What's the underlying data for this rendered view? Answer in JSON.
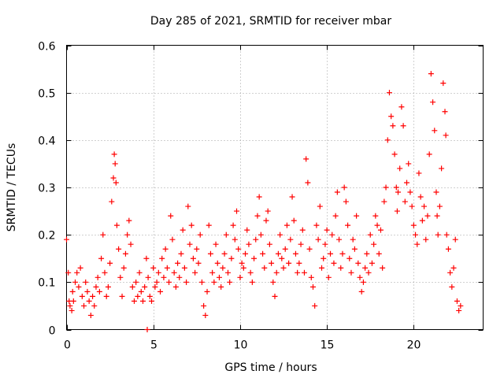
{
  "chart_data": {
    "type": "scatter",
    "title": "Day 285 of 2021, SRMTID for receiver mbar",
    "xlabel": "GPS time / hours",
    "ylabel": "SRMTID / TECUs",
    "xlim": [
      0,
      24
    ],
    "ylim": [
      0,
      0.6
    ],
    "xticks": [
      0,
      5,
      10,
      15,
      20
    ],
    "yticks": [
      0,
      0.1,
      0.2,
      0.3,
      0.4,
      0.5,
      0.6
    ],
    "xtick_labels": [
      "0",
      "5",
      "10",
      "15",
      "20"
    ],
    "ytick_labels": [
      "0",
      "0.1",
      "0.2",
      "0.3",
      "0.4",
      "0.5",
      "0.6"
    ],
    "grid": true,
    "marker": "+",
    "color": "#ff0000",
    "series": [
      {
        "name": "SRMTID",
        "x": [
          0.0,
          0.1,
          0.15,
          0.2,
          0.3,
          0.35,
          0.4,
          0.5,
          0.6,
          0.7,
          0.8,
          0.9,
          1.0,
          1.1,
          1.2,
          1.3,
          1.4,
          1.5,
          1.6,
          1.7,
          1.8,
          1.9,
          2.0,
          2.1,
          2.2,
          2.3,
          2.4,
          2.5,
          2.6,
          2.7,
          2.75,
          2.8,
          2.85,
          2.9,
          3.0,
          3.1,
          3.2,
          3.3,
          3.4,
          3.5,
          3.6,
          3.7,
          3.8,
          3.9,
          4.0,
          4.1,
          4.2,
          4.3,
          4.4,
          4.5,
          4.6,
          4.7,
          4.8,
          4.9,
          5.0,
          5.1,
          5.2,
          5.3,
          5.4,
          5.5,
          5.6,
          5.7,
          5.8,
          5.9,
          6.0,
          6.1,
          6.2,
          6.3,
          6.4,
          6.5,
          6.6,
          6.7,
          6.8,
          6.9,
          7.0,
          7.1,
          7.2,
          7.3,
          7.4,
          7.5,
          7.6,
          7.7,
          7.8,
          7.9,
          8.0,
          8.1,
          8.2,
          8.3,
          8.4,
          8.5,
          8.6,
          8.7,
          8.8,
          8.9,
          9.0,
          9.1,
          9.2,
          9.3,
          9.4,
          9.5,
          9.6,
          9.7,
          9.8,
          9.9,
          10.0,
          10.1,
          10.2,
          10.3,
          10.4,
          10.5,
          10.6,
          10.7,
          10.8,
          10.9,
          11.0,
          11.1,
          11.2,
          11.3,
          11.4,
          11.5,
          11.6,
          11.7,
          11.8,
          11.9,
          12.0,
          12.1,
          12.2,
          12.3,
          12.4,
          12.5,
          12.6,
          12.7,
          12.8,
          12.9,
          13.0,
          13.1,
          13.2,
          13.3,
          13.4,
          13.5,
          13.6,
          13.7,
          13.8,
          13.9,
          14.0,
          14.1,
          14.2,
          14.3,
          14.4,
          14.5,
          14.6,
          14.7,
          14.8,
          14.9,
          15.0,
          15.1,
          15.2,
          15.3,
          15.4,
          15.5,
          15.6,
          15.7,
          15.8,
          15.9,
          16.0,
          16.1,
          16.2,
          16.3,
          16.4,
          16.5,
          16.6,
          16.7,
          16.8,
          16.9,
          17.0,
          17.1,
          17.2,
          17.3,
          17.4,
          17.5,
          17.6,
          17.7,
          17.8,
          17.9,
          18.0,
          18.1,
          18.2,
          18.3,
          18.4,
          18.5,
          18.6,
          18.7,
          18.8,
          18.9,
          19.0,
          19.05,
          19.1,
          19.2,
          19.3,
          19.4,
          19.5,
          19.6,
          19.7,
          19.8,
          19.9,
          20.0,
          20.1,
          20.2,
          20.3,
          20.4,
          20.5,
          20.6,
          20.7,
          20.8,
          20.9,
          21.0,
          21.1,
          21.2,
          21.3,
          21.35,
          21.4,
          21.5,
          21.6,
          21.7,
          21.8,
          21.85,
          21.9,
          22.0,
          22.1,
          22.2,
          22.3,
          22.4,
          22.5,
          22.6,
          22.7,
          4.65
        ],
        "y": [
          0.19,
          0.12,
          0.06,
          0.05,
          0.04,
          0.08,
          0.06,
          0.1,
          0.12,
          0.09,
          0.13,
          0.07,
          0.05,
          0.1,
          0.08,
          0.06,
          0.03,
          0.07,
          0.05,
          0.09,
          0.11,
          0.08,
          0.15,
          0.2,
          0.12,
          0.07,
          0.09,
          0.14,
          0.27,
          0.32,
          0.37,
          0.35,
          0.31,
          0.22,
          0.17,
          0.11,
          0.07,
          0.13,
          0.16,
          0.2,
          0.23,
          0.18,
          0.09,
          0.06,
          0.1,
          0.07,
          0.12,
          0.08,
          0.06,
          0.09,
          0.15,
          0.11,
          0.07,
          0.06,
          0.13,
          0.09,
          0.1,
          0.12,
          0.08,
          0.15,
          0.11,
          0.17,
          0.13,
          0.1,
          0.24,
          0.19,
          0.12,
          0.09,
          0.14,
          0.11,
          0.16,
          0.21,
          0.13,
          0.1,
          0.26,
          0.18,
          0.22,
          0.15,
          0.12,
          0.17,
          0.14,
          0.2,
          0.1,
          0.05,
          0.03,
          0.08,
          0.22,
          0.16,
          0.12,
          0.1,
          0.18,
          0.14,
          0.11,
          0.09,
          0.13,
          0.16,
          0.2,
          0.12,
          0.1,
          0.15,
          0.22,
          0.19,
          0.25,
          0.17,
          0.11,
          0.14,
          0.13,
          0.16,
          0.21,
          0.18,
          0.12,
          0.1,
          0.15,
          0.19,
          0.24,
          0.28,
          0.2,
          0.16,
          0.13,
          0.23,
          0.25,
          0.18,
          0.14,
          0.1,
          0.07,
          0.12,
          0.16,
          0.2,
          0.15,
          0.13,
          0.17,
          0.22,
          0.14,
          0.19,
          0.28,
          0.23,
          0.16,
          0.12,
          0.14,
          0.18,
          0.21,
          0.12,
          0.36,
          0.31,
          0.17,
          0.11,
          0.09,
          0.05,
          0.22,
          0.19,
          0.26,
          0.13,
          0.15,
          0.18,
          0.21,
          0.11,
          0.16,
          0.2,
          0.14,
          0.24,
          0.29,
          0.19,
          0.13,
          0.16,
          0.3,
          0.27,
          0.22,
          0.15,
          0.12,
          0.19,
          0.17,
          0.24,
          0.14,
          0.11,
          0.08,
          0.1,
          0.13,
          0.16,
          0.12,
          0.2,
          0.14,
          0.18,
          0.24,
          0.22,
          0.16,
          0.21,
          0.13,
          0.27,
          0.3,
          0.4,
          0.5,
          0.45,
          0.43,
          0.37,
          0.3,
          0.25,
          0.29,
          0.34,
          0.47,
          0.43,
          0.27,
          0.31,
          0.35,
          0.29,
          0.26,
          0.22,
          0.2,
          0.18,
          0.33,
          0.28,
          0.23,
          0.26,
          0.19,
          0.24,
          0.37,
          0.54,
          0.48,
          0.42,
          0.29,
          0.24,
          0.2,
          0.26,
          0.34,
          0.52,
          0.46,
          0.41,
          0.2,
          0.17,
          0.12,
          0.09,
          0.13,
          0.19,
          0.06,
          0.04,
          0.05,
          0.0
        ]
      }
    ]
  }
}
